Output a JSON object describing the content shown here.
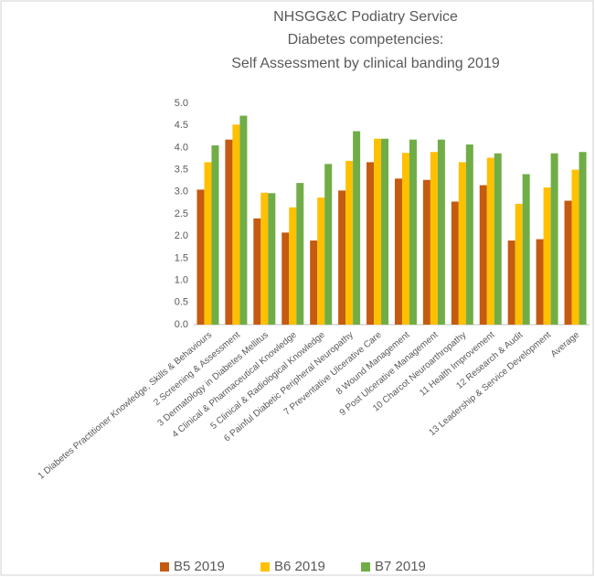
{
  "chart_data": {
    "type": "bar",
    "title": [
      "NHSGG&C Podiatry Service",
      "Diabetes competencies:",
      "Self Assessment by clinical banding 2019"
    ],
    "categories": [
      "1 Diabetes Practitioner Knowledge, Skills & Behaviours",
      "2 Screening & Assessment",
      "3 Dermatology in Diabetes Mellitus",
      "4 Clinical & Pharmaceutical Knowledge",
      "5 Clinical & Radiological Knowledge",
      "6 Painful Diabetic Peripheral Neuropathy",
      "7 Preventative Ulcerative Care",
      "8 Wound Management",
      "9 Post Ulcerative Management",
      "10 Charcot Neuroarthropathy",
      "11 Health Improvement",
      "12 Research & Audit",
      "13 Leadership & Service Development",
      "Average"
    ],
    "series": [
      {
        "name": "B5 2019",
        "color": "#c55a11",
        "values": [
          3.05,
          4.18,
          2.4,
          2.08,
          1.9,
          3.03,
          3.67,
          3.3,
          3.27,
          2.78,
          3.15,
          1.9,
          1.93,
          2.8
        ]
      },
      {
        "name": "B6 2019",
        "color": "#ffc000",
        "values": [
          3.67,
          4.52,
          2.98,
          2.65,
          2.87,
          3.7,
          4.2,
          3.88,
          3.9,
          3.67,
          3.77,
          2.73,
          3.1,
          3.5
        ]
      },
      {
        "name": "B7 2019",
        "color": "#70ad47",
        "values": [
          4.05,
          4.72,
          2.97,
          3.2,
          3.63,
          4.37,
          4.2,
          4.18,
          4.18,
          4.07,
          3.87,
          3.4,
          3.87,
          3.9
        ]
      }
    ],
    "ylim": [
      0,
      5
    ],
    "yticks": [
      {
        "value": 0,
        "label": "0.0"
      },
      0.5,
      {
        "value": 1,
        "label": "1.0"
      },
      1.5,
      {
        "value": 2,
        "label": "2.0"
      },
      2.5,
      {
        "value": 3,
        "label": "3.0"
      },
      3.5,
      {
        "value": 4,
        "label": "4.0"
      },
      4.5,
      {
        "value": 5,
        "label": "5.0"
      }
    ],
    "grid": false,
    "legend": "bottom"
  }
}
